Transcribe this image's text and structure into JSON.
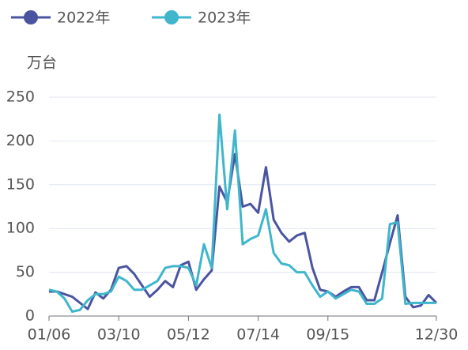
{
  "chart_data": {
    "type": "line",
    "y_axis_label": "万台",
    "categories": [
      "01/06",
      null,
      null,
      null,
      null,
      null,
      null,
      null,
      null,
      "03/10",
      null,
      null,
      null,
      null,
      null,
      null,
      null,
      null,
      "05/12",
      null,
      null,
      null,
      null,
      null,
      null,
      null,
      null,
      "07/14",
      null,
      null,
      null,
      null,
      null,
      null,
      null,
      null,
      "09/15",
      null,
      null,
      null,
      null,
      null,
      null,
      null,
      null,
      null,
      null,
      null,
      null,
      null,
      "12/30"
    ],
    "series": [
      {
        "name": "2022年",
        "color": "#4a54a0",
        "values": [
          28,
          28,
          25,
          22,
          15,
          8,
          27,
          20,
          30,
          55,
          57,
          48,
          35,
          22,
          30,
          40,
          33,
          58,
          62,
          30,
          42,
          52,
          148,
          130,
          185,
          125,
          128,
          118,
          170,
          110,
          95,
          85,
          92,
          95,
          55,
          30,
          28,
          22,
          28,
          33,
          33,
          18,
          18,
          50,
          83,
          115,
          22,
          10,
          12,
          24,
          15
        ]
      },
      {
        "name": "2023年",
        "color": "#3fb6cc",
        "values": [
          30,
          28,
          20,
          5,
          7,
          18,
          25,
          25,
          28,
          45,
          40,
          30,
          30,
          35,
          40,
          55,
          57,
          57,
          55,
          35,
          82,
          55,
          230,
          122,
          212,
          82,
          88,
          92,
          122,
          72,
          60,
          58,
          50,
          50,
          35,
          22,
          28,
          20,
          25,
          30,
          28,
          14,
          14,
          20,
          105,
          107,
          14,
          15,
          15,
          15,
          15
        ]
      }
    ],
    "ylim": [
      0,
      250
    ],
    "yticks": [
      0,
      50,
      100,
      150,
      200,
      250
    ],
    "grid": true,
    "legend": "top-left"
  }
}
